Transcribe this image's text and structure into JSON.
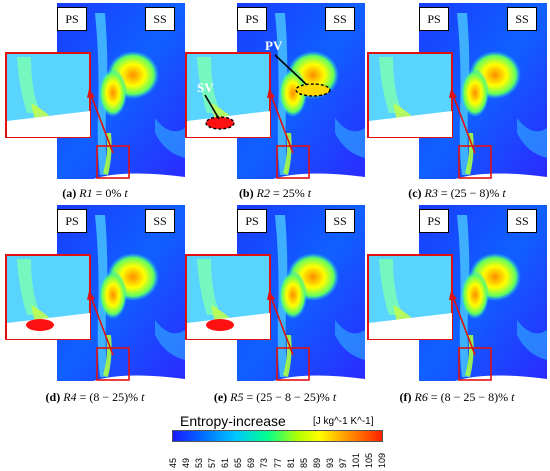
{
  "panels": [
    {
      "id": "a",
      "tag_ps": "PS",
      "tag_ss": "SS",
      "caption_letter": "(a)",
      "caption_var": "R1",
      "caption_expr": " = 0% ",
      "caption_unit": "t"
    },
    {
      "id": "b",
      "tag_ps": "PS",
      "tag_ss": "SS",
      "caption_letter": "(b)",
      "caption_var": "R2",
      "caption_expr": " = 25% ",
      "caption_unit": "t",
      "labels": {
        "sv": "SV",
        "pv": "PV"
      }
    },
    {
      "id": "c",
      "tag_ps": "PS",
      "tag_ss": "SS",
      "caption_letter": "(c)",
      "caption_var": "R3",
      "caption_expr": " = (25 − 8)% ",
      "caption_unit": "t"
    },
    {
      "id": "d",
      "tag_ps": "PS",
      "tag_ss": "SS",
      "caption_letter": "(d)",
      "caption_var": "R4",
      "caption_expr": " = (8 − 25)% ",
      "caption_unit": "t"
    },
    {
      "id": "e",
      "tag_ps": "PS",
      "tag_ss": "SS",
      "caption_letter": "(e)",
      "caption_var": "R5",
      "caption_expr": " = (25 − 8 − 25)% ",
      "caption_unit": "t"
    },
    {
      "id": "f",
      "tag_ps": "PS",
      "tag_ss": "SS",
      "caption_letter": "(f)",
      "caption_var": "R6",
      "caption_expr": " = (8 − 25 − 8)% ",
      "caption_unit": "t"
    }
  ],
  "colorbar": {
    "title": "Entropy-increase",
    "units": "[J kg^-1 K^-1]",
    "ticks": [
      "45",
      "49",
      "53",
      "57",
      "61",
      "65",
      "69",
      "73",
      "77",
      "81",
      "85",
      "89",
      "93",
      "97",
      "101",
      "105",
      "109"
    ],
    "colors": [
      "#1a1aff",
      "#0070ff",
      "#00c8ff",
      "#00ff90",
      "#b4ff00",
      "#ffff00",
      "#ffa000",
      "#ff2000"
    ]
  }
}
